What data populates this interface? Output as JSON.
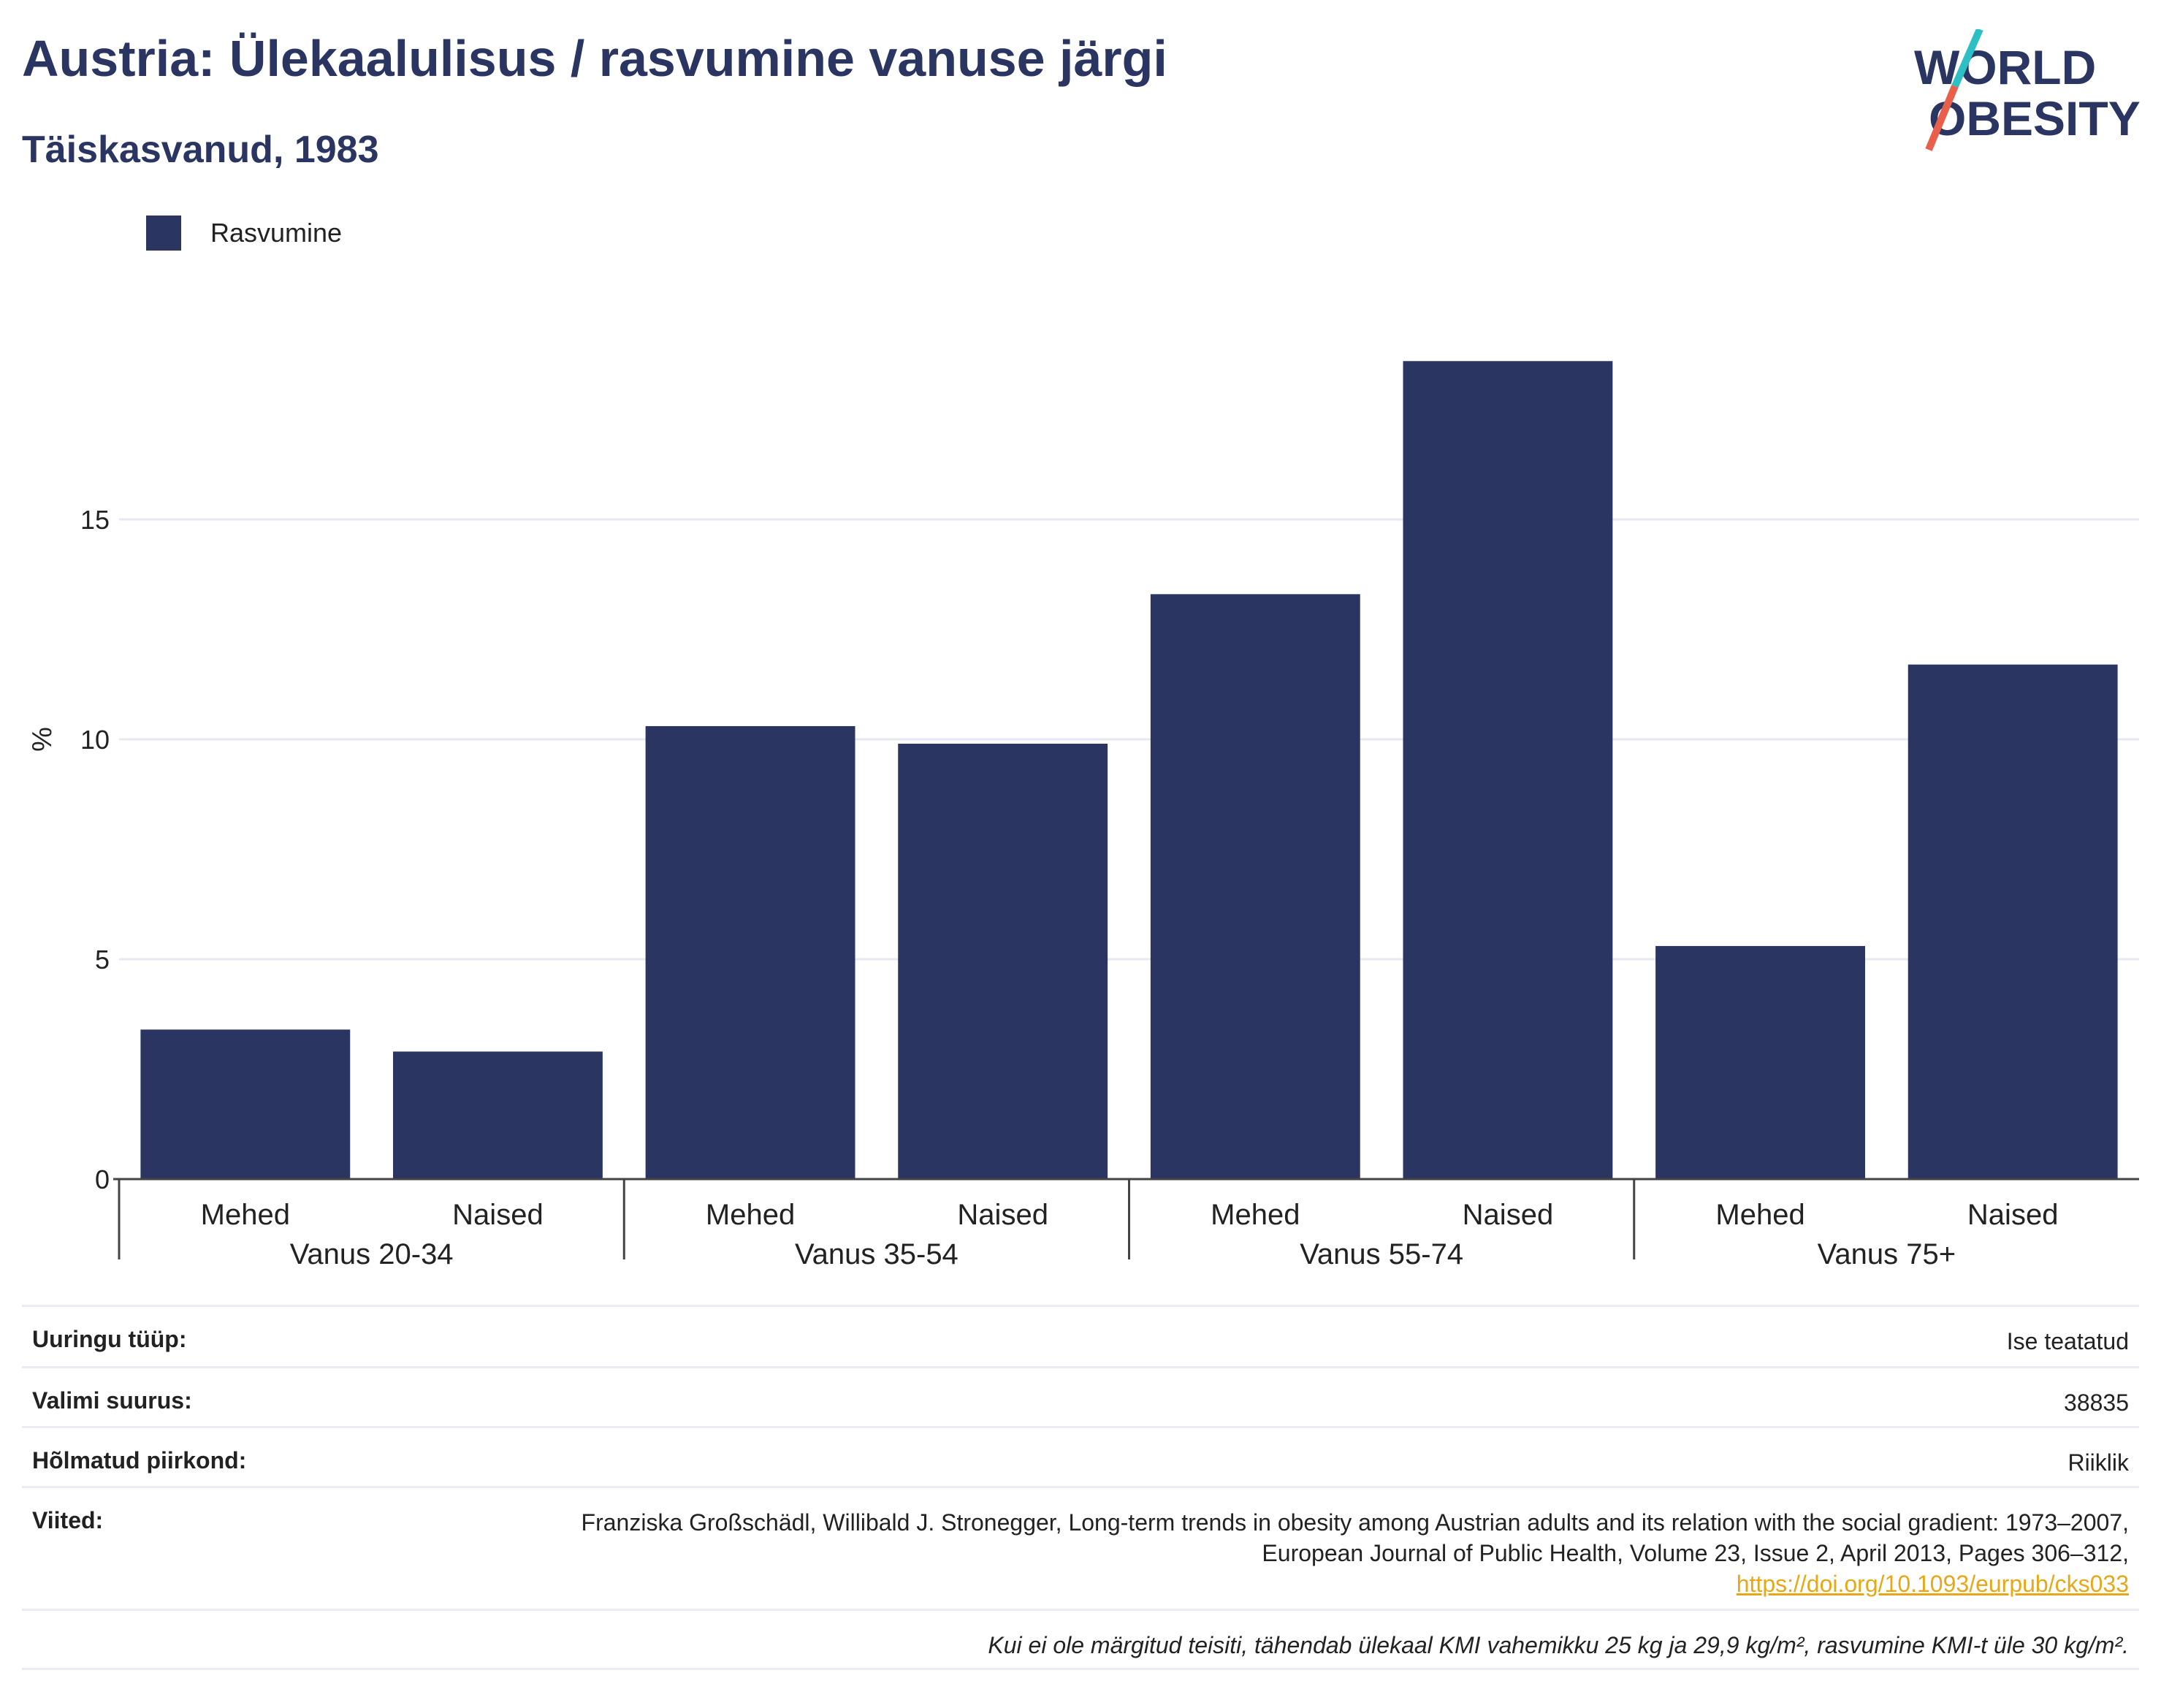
{
  "title": "Austria: Ülekaalulisus / rasvumine vanuse järgi",
  "subtitle": "Täiskasvanud, 1983",
  "logo": {
    "line1": "WORLD",
    "line2": "OBESITY"
  },
  "colors": {
    "bar": "#2a3561",
    "grid": "#e6e9f0",
    "axis": "#444444",
    "link": "#e6a817",
    "logo_teal": "#2ebfc4",
    "logo_red": "#e8604c"
  },
  "chart_data": {
    "type": "bar",
    "ylabel": "%",
    "ylim": [
      0,
      20
    ],
    "yticks": [
      0,
      5,
      10,
      15
    ],
    "grid": true,
    "legend_position": "top-left",
    "groups": [
      "Vanus 20-34",
      "Vanus 35-54",
      "Vanus 55-74",
      "Vanus 75+"
    ],
    "subcategories": [
      "Mehed",
      "Naised"
    ],
    "series": [
      {
        "name": "Rasvumine",
        "values": [
          [
            3.4,
            2.9
          ],
          [
            10.3,
            9.9
          ],
          [
            13.3,
            18.6
          ],
          [
            5.3,
            11.7
          ]
        ]
      }
    ]
  },
  "info": [
    {
      "key": "Uuringu tüüp:",
      "value": "Ise teatatud"
    },
    {
      "key": "Valimi suurus:",
      "value": "38835"
    },
    {
      "key": "Hõlmatud piirkond:",
      "value": "Riiklik"
    },
    {
      "key": "Viited:",
      "value": "Franziska Großschädl, Willibald J. Stronegger, Long-term trends in obesity among Austrian adults and its relation with the social gradient: 1973–2007, European Journal of Public Health, Volume 23, Issue 2, April 2013, Pages 306–312,",
      "link": "https://doi.org/10.1093/eurpub/cks033"
    }
  ],
  "note": "Kui ei ole märgitud teisiti, tähendab ülekaal KMI vahemikku 25 kg ja 29,9 kg/m², rasvumine KMI-t üle 30 kg/m²."
}
